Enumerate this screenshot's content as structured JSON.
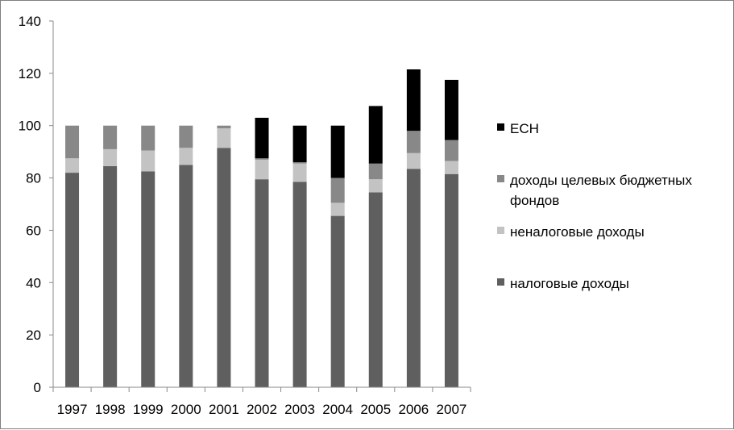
{
  "chart_data": {
    "type": "bar",
    "stacked": true,
    "title": "",
    "xlabel": "",
    "ylabel": "",
    "ylim": [
      0,
      140
    ],
    "yticks": [
      0,
      20,
      40,
      60,
      80,
      100,
      120,
      140
    ],
    "grid": false,
    "legend_position": "right",
    "categories": [
      "1997",
      "1998",
      "1999",
      "2000",
      "2001",
      "2002",
      "2003",
      "2004",
      "2005",
      "2006",
      "2007"
    ],
    "series": [
      {
        "name": "налоговые доходы",
        "color": "#5f5f5f",
        "values": [
          82,
          84.5,
          82.5,
          85,
          91.5,
          79.5,
          78.5,
          65.5,
          74.5,
          83.5,
          81.5
        ]
      },
      {
        "name": "неналоговые доходы",
        "color": "#c3c3c3",
        "values": [
          5.5,
          6.5,
          8,
          6.5,
          7.5,
          7.5,
          7,
          5,
          5,
          6,
          5
        ]
      },
      {
        "name": "доходы целевых бюджетных фондов",
        "color": "#888888",
        "values": [
          12.5,
          9,
          9.5,
          8.5,
          1,
          0.5,
          0.5,
          9.5,
          6,
          8.5,
          8
        ]
      },
      {
        "name": "ЕСН",
        "color": "#000000",
        "values": [
          0,
          0,
          0,
          0,
          0,
          15.5,
          14,
          20,
          22,
          23.5,
          23
        ]
      }
    ],
    "legend_order": [
      "ЕСН",
      "доходы целевых бюджетных фондов",
      "неналоговые доходы",
      "налоговые доходы"
    ],
    "legend_lines": {
      "ЕСН": [
        "ЕСН"
      ],
      "доходы целевых бюджетных фондов": [
        "доходы целевых бюджетных",
        "фондов"
      ],
      "неналоговые доходы": [
        "неналоговые доходы"
      ],
      "налоговые доходы": [
        "налоговые доходы"
      ]
    }
  }
}
